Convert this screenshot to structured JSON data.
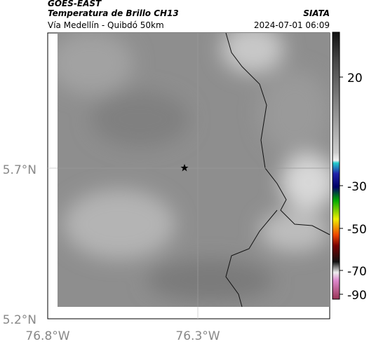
{
  "header": {
    "title": "GOES-EAST",
    "subtitle": "Temperatura de Brillo CH13",
    "source": "SIATA",
    "route": "Vía Medellín - Quibdó 50km",
    "timestamp": "2024-07-01 06:09"
  },
  "map": {
    "lat_labels": [
      "5.7°N",
      "5.2°N"
    ],
    "lon_labels": [
      "76.8°W",
      "76.3°W"
    ]
  },
  "colorbar": {
    "tick_labels": [
      "20",
      "-30",
      "-50",
      "-70",
      "-90"
    ]
  }
}
